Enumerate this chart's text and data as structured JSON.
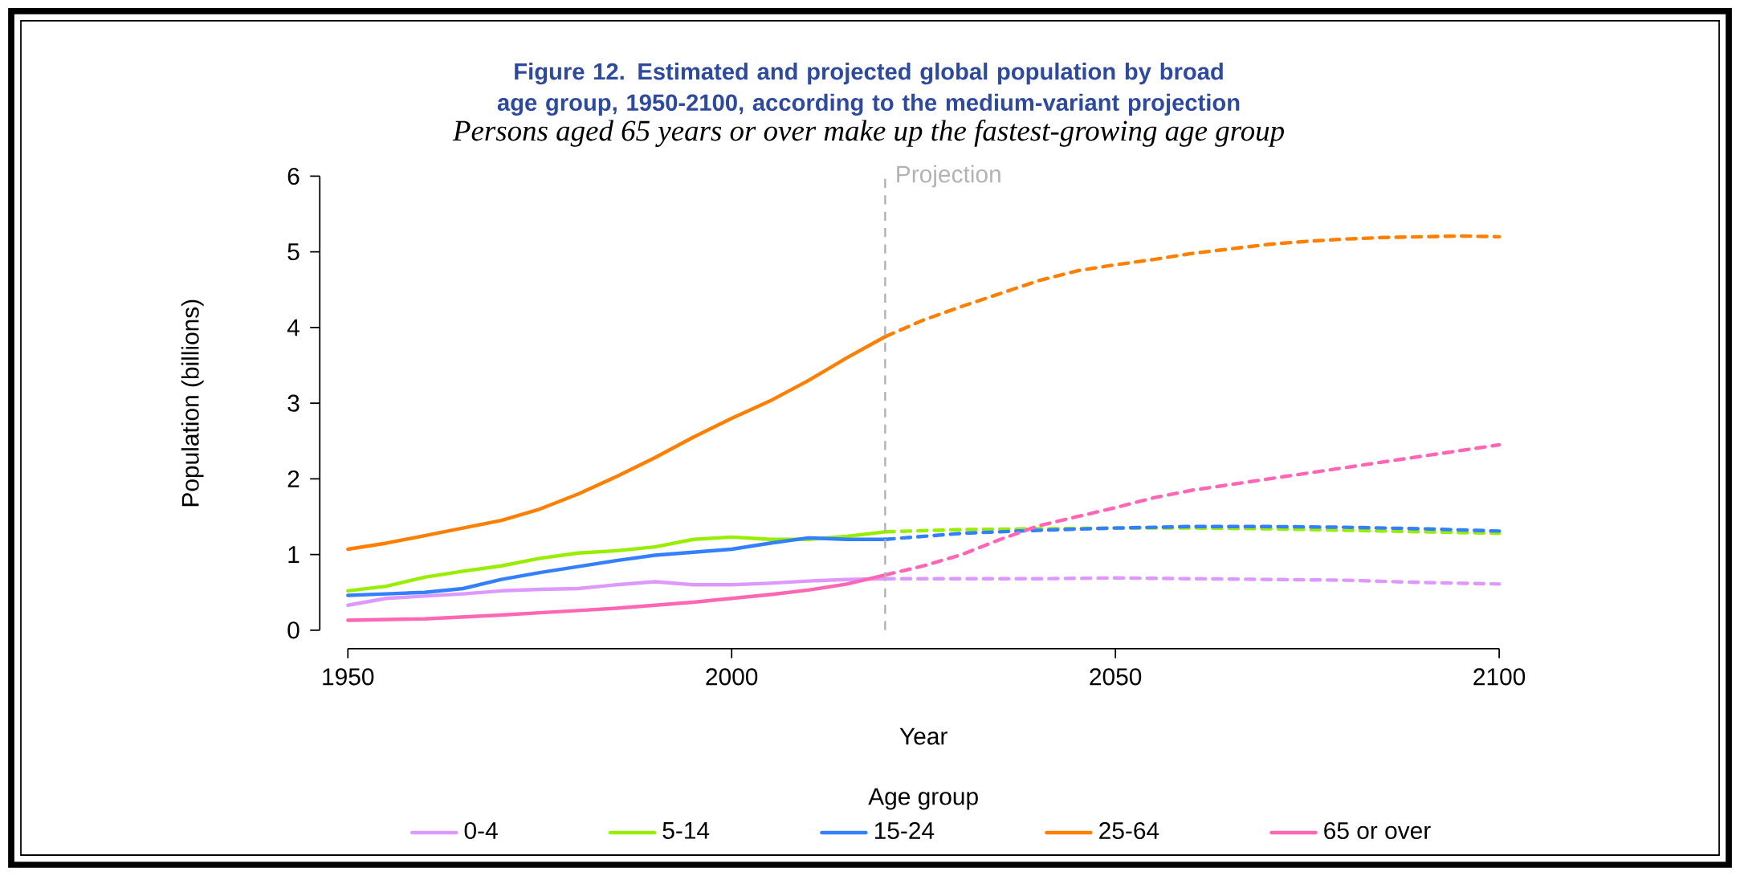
{
  "chart_data": {
    "type": "line",
    "title": "Figure 12. Estimated and projected global population by broad age group, 1950-2100, according to the medium-variant projection",
    "subtitle": "Persons aged 65 years or over make up the fastest-growing age group",
    "xlabel": "Year",
    "ylabel": "Population (billions)",
    "legend_title": "Age group",
    "xlim": [
      1950,
      2100
    ],
    "xticks": [
      1950,
      2000,
      2050,
      2100
    ],
    "ylim": [
      0,
      6
    ],
    "yticks": [
      0,
      1,
      2,
      3,
      4,
      5,
      6
    ],
    "legend": "bottom",
    "ref_lines": [
      {
        "axis": "x",
        "value": 2020,
        "label": "Projection",
        "color": "#b3b3b3",
        "line_style": "dashed"
      }
    ],
    "series": [
      {
        "name": "0-4",
        "color": "#dd99ff",
        "line_style": "solid",
        "x": [
          1950,
          1955,
          1960,
          1965,
          1970,
          1975,
          1980,
          1985,
          1990,
          1995,
          2000,
          2005,
          2010,
          2015,
          2020
        ],
        "values": [
          0.33,
          0.42,
          0.45,
          0.48,
          0.52,
          0.54,
          0.55,
          0.6,
          0.64,
          0.6,
          0.6,
          0.62,
          0.65,
          0.67,
          0.68
        ]
      },
      {
        "name": "5-14",
        "color": "#99ee00",
        "line_style": "solid",
        "x": [
          1950,
          1955,
          1960,
          1965,
          1970,
          1975,
          1980,
          1985,
          1990,
          1995,
          2000,
          2005,
          2010,
          2015,
          2020
        ],
        "values": [
          0.52,
          0.58,
          0.7,
          0.78,
          0.85,
          0.95,
          1.02,
          1.05,
          1.1,
          1.2,
          1.23,
          1.2,
          1.2,
          1.24,
          1.3
        ]
      },
      {
        "name": "15-24",
        "color": "#3380ff",
        "line_style": "solid",
        "x": [
          1950,
          1955,
          1960,
          1965,
          1970,
          1975,
          1980,
          1985,
          1990,
          1995,
          2000,
          2005,
          2010,
          2015,
          2020
        ],
        "values": [
          0.46,
          0.48,
          0.5,
          0.55,
          0.67,
          0.76,
          0.84,
          0.92,
          0.99,
          1.03,
          1.07,
          1.15,
          1.22,
          1.2,
          1.2
        ]
      },
      {
        "name": "25-64",
        "color": "#ff7f00",
        "line_style": "solid",
        "x": [
          1950,
          1955,
          1960,
          1965,
          1970,
          1975,
          1980,
          1985,
          1990,
          1995,
          2000,
          2005,
          2010,
          2015,
          2020
        ],
        "values": [
          1.07,
          1.15,
          1.25,
          1.35,
          1.45,
          1.6,
          1.8,
          2.03,
          2.28,
          2.55,
          2.8,
          3.03,
          3.3,
          3.6,
          3.88
        ]
      },
      {
        "name": "65 or over",
        "color": "#ff66b3",
        "line_style": "solid",
        "x": [
          1950,
          1960,
          1970,
          1975,
          1980,
          1985,
          1990,
          1995,
          2000,
          2005,
          2010,
          2015,
          2020
        ],
        "values": [
          0.13,
          0.15,
          0.2,
          0.23,
          0.26,
          0.29,
          0.33,
          0.37,
          0.42,
          0.47,
          0.53,
          0.61,
          0.73
        ]
      },
      {
        "color": "#dd99ff",
        "line_style": "dashed",
        "x": [
          2020,
          2030,
          2040,
          2050,
          2060,
          2070,
          2080,
          2090,
          2100
        ],
        "values": [
          0.68,
          0.68,
          0.68,
          0.69,
          0.68,
          0.67,
          0.66,
          0.63,
          0.61
        ]
      },
      {
        "color": "#99ee00",
        "line_style": "dashed",
        "x": [
          2020,
          2030,
          2040,
          2050,
          2060,
          2070,
          2080,
          2090,
          2100
        ],
        "values": [
          1.3,
          1.33,
          1.34,
          1.35,
          1.35,
          1.34,
          1.32,
          1.3,
          1.28
        ]
      },
      {
        "color": "#3380ff",
        "line_style": "dashed",
        "x": [
          2020,
          2030,
          2040,
          2050,
          2060,
          2070,
          2080,
          2090,
          2100
        ],
        "values": [
          1.2,
          1.28,
          1.32,
          1.35,
          1.37,
          1.37,
          1.36,
          1.34,
          1.31
        ]
      },
      {
        "color": "#ff7f00",
        "line_style": "dashed",
        "x": [
          2020,
          2025,
          2030,
          2035,
          2040,
          2045,
          2050,
          2055,
          2060,
          2065,
          2070,
          2075,
          2080,
          2085,
          2090,
          2095,
          2100
        ],
        "values": [
          3.88,
          4.1,
          4.28,
          4.45,
          4.62,
          4.75,
          4.83,
          4.9,
          4.98,
          5.04,
          5.1,
          5.14,
          5.17,
          5.19,
          5.2,
          5.21,
          5.2
        ]
      },
      {
        "color": "#ff66b3",
        "line_style": "dashed",
        "x": [
          2020,
          2025,
          2030,
          2035,
          2040,
          2045,
          2050,
          2055,
          2060,
          2070,
          2080,
          2090,
          2100
        ],
        "values": [
          0.73,
          0.85,
          1.0,
          1.2,
          1.38,
          1.5,
          1.62,
          1.75,
          1.85,
          2.0,
          2.15,
          2.3,
          2.45
        ]
      }
    ]
  }
}
